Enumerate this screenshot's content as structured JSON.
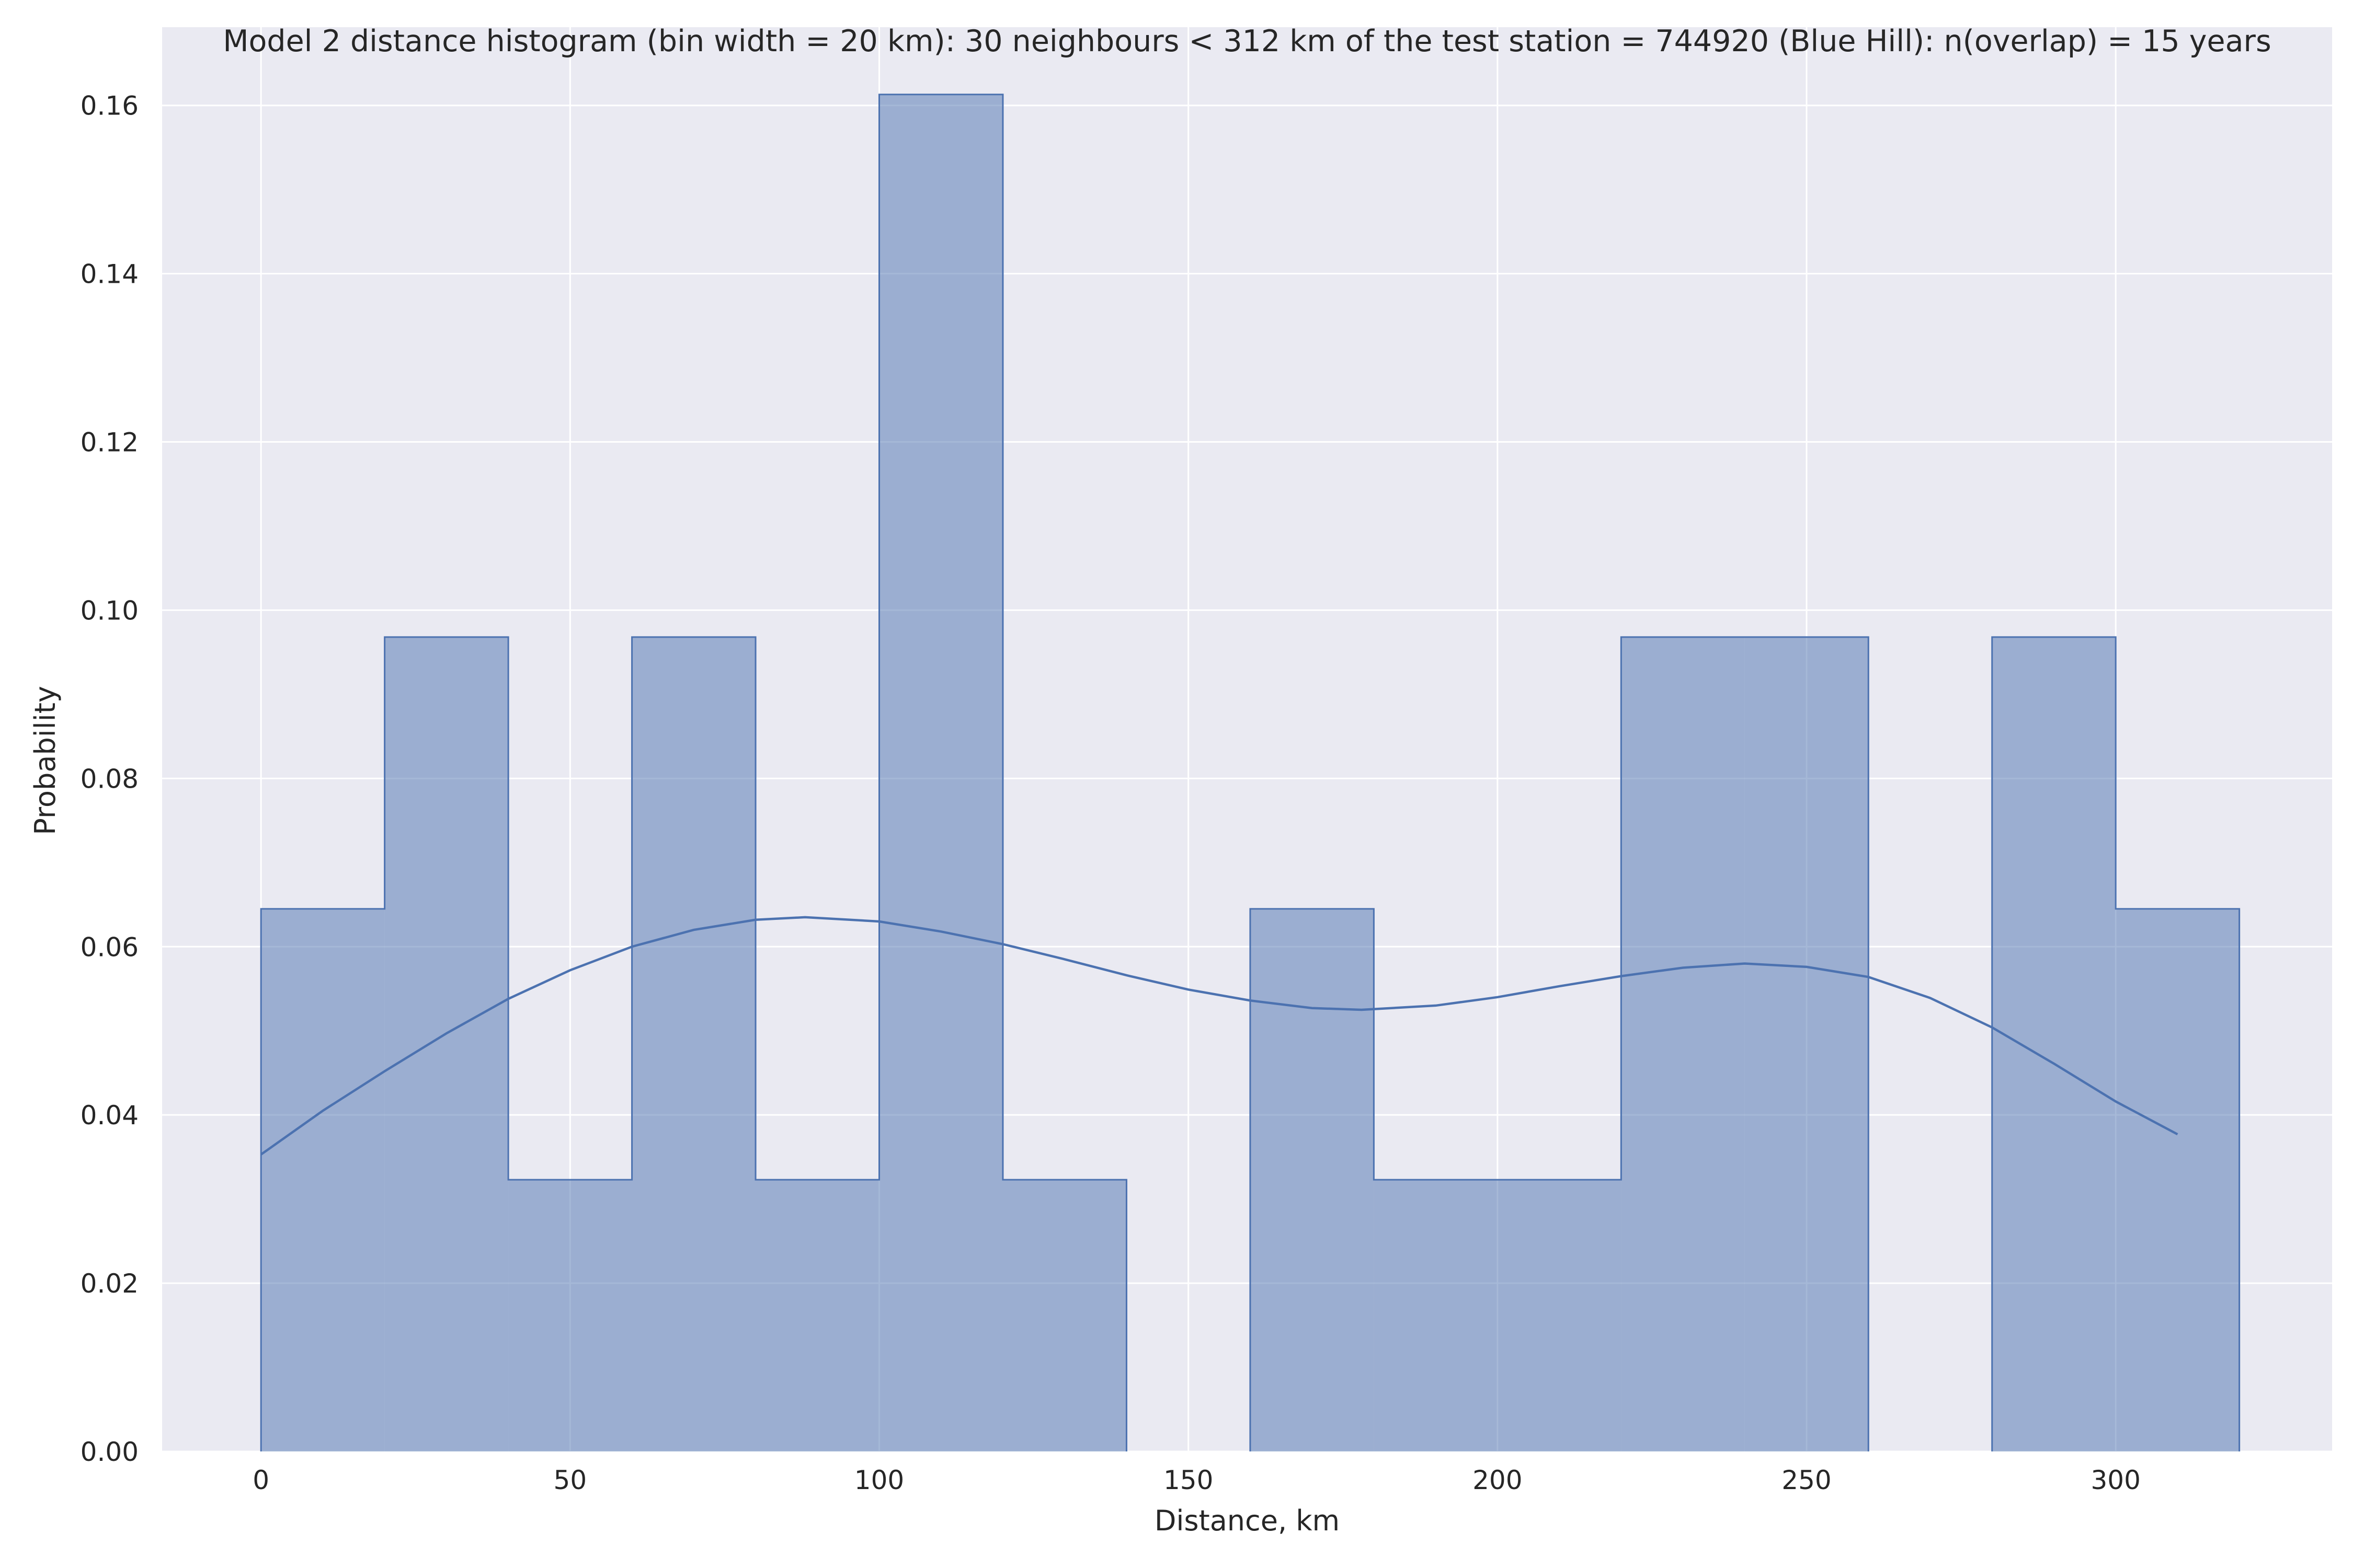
{
  "chart_data": {
    "type": "bar",
    "title": "Model 2 distance histogram (bin width = 20 km): 30 neighbours < 312 km of the test station = 744920 (Blue Hill): n(overlap) = 15 years",
    "xlabel": "Distance, km",
    "ylabel": "Probability",
    "bin_width": 20,
    "xlim": [
      -16,
      335
    ],
    "ylim": [
      0,
      0.1693
    ],
    "xticks": [
      0,
      50,
      100,
      150,
      200,
      250,
      300
    ],
    "yticks": [
      0.0,
      0.02,
      0.04,
      0.06,
      0.08,
      0.1,
      0.12,
      0.14,
      0.16
    ],
    "ytick_labels": [
      "0.00",
      "0.02",
      "0.04",
      "0.06",
      "0.08",
      "0.10",
      "0.12",
      "0.14",
      "0.16"
    ],
    "grid": true,
    "bins": [
      {
        "start": 0,
        "end": 20,
        "value": 0.0645
      },
      {
        "start": 20,
        "end": 40,
        "value": 0.0968
      },
      {
        "start": 40,
        "end": 60,
        "value": 0.0323
      },
      {
        "start": 60,
        "end": 80,
        "value": 0.0968
      },
      {
        "start": 80,
        "end": 100,
        "value": 0.0323
      },
      {
        "start": 100,
        "end": 120,
        "value": 0.1613
      },
      {
        "start": 120,
        "end": 140,
        "value": 0.0323
      },
      {
        "start": 140,
        "end": 160,
        "value": 0
      },
      {
        "start": 160,
        "end": 180,
        "value": 0.0645
      },
      {
        "start": 180,
        "end": 200,
        "value": 0.0323
      },
      {
        "start": 200,
        "end": 220,
        "value": 0.0323
      },
      {
        "start": 220,
        "end": 240,
        "value": 0.0968
      },
      {
        "start": 240,
        "end": 260,
        "value": 0.0968
      },
      {
        "start": 260,
        "end": 280,
        "value": 0
      },
      {
        "start": 280,
        "end": 300,
        "value": 0.0968
      },
      {
        "start": 300,
        "end": 320,
        "value": 0.0645
      }
    ],
    "kde": {
      "x": [
        0,
        10,
        20,
        30,
        40,
        50,
        60,
        70,
        80,
        88,
        100,
        110,
        120,
        130,
        140,
        150,
        160,
        170,
        178,
        190,
        200,
        210,
        220,
        230,
        240,
        250,
        260,
        270,
        280,
        290,
        300,
        310
      ],
      "y": [
        0.0353,
        0.0405,
        0.0452,
        0.0497,
        0.0538,
        0.0572,
        0.06,
        0.062,
        0.0632,
        0.0635,
        0.063,
        0.0618,
        0.0603,
        0.0585,
        0.0566,
        0.0549,
        0.0536,
        0.0527,
        0.0525,
        0.053,
        0.054,
        0.0553,
        0.0565,
        0.0575,
        0.058,
        0.0576,
        0.0564,
        0.0539,
        0.0504,
        0.0461,
        0.0416,
        0.0377
      ]
    },
    "colors": {
      "background": "#eaeaf2",
      "grid": "#ffffff",
      "bar_fill": "#4c72b0",
      "bar_fill_opacity": 0.5,
      "line": "#4c72b0",
      "text": "#262626"
    }
  }
}
